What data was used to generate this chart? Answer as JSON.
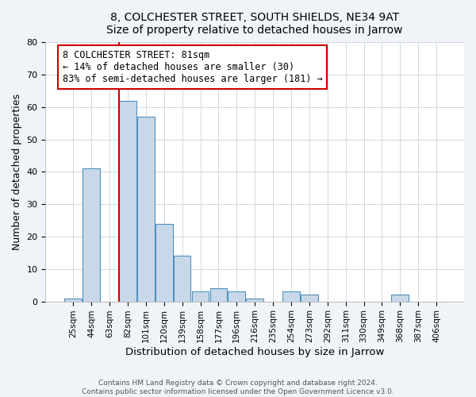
{
  "title": "8, COLCHESTER STREET, SOUTH SHIELDS, NE34 9AT",
  "subtitle": "Size of property relative to detached houses in Jarrow",
  "xlabel": "Distribution of detached houses by size in Jarrow",
  "ylabel": "Number of detached properties",
  "bin_labels": [
    "25sqm",
    "44sqm",
    "63sqm",
    "82sqm",
    "101sqm",
    "120sqm",
    "139sqm",
    "158sqm",
    "177sqm",
    "196sqm",
    "216sqm",
    "235sqm",
    "254sqm",
    "273sqm",
    "292sqm",
    "311sqm",
    "330sqm",
    "349sqm",
    "368sqm",
    "387sqm",
    "406sqm"
  ],
  "bar_heights": [
    1,
    41,
    0,
    62,
    57,
    24,
    14,
    3,
    4,
    3,
    1,
    0,
    3,
    2,
    0,
    0,
    0,
    0,
    2,
    0,
    0
  ],
  "bar_color": "#c8d8e8",
  "bar_edge_color": "#5090c0",
  "property_line_color": "#cc0000",
  "property_line_bar_index": 3,
  "annotation_text": "8 COLCHESTER STREET: 81sqm\n← 14% of detached houses are smaller (30)\n83% of semi-detached houses are larger (181) →",
  "annotation_box_edgecolor": "#cc0000",
  "annotation_box_facecolor": "#ffffff",
  "ylim": [
    0,
    80
  ],
  "yticks": [
    0,
    10,
    20,
    30,
    40,
    50,
    60,
    70,
    80
  ],
  "footer_line1": "Contains HM Land Registry data © Crown copyright and database right 2024.",
  "footer_line2": "Contains public sector information licensed under the Open Government Licence v3.0.",
  "background_color": "#f0f4f8",
  "plot_background_color": "#ffffff",
  "grid_color": "#d0d8e0"
}
